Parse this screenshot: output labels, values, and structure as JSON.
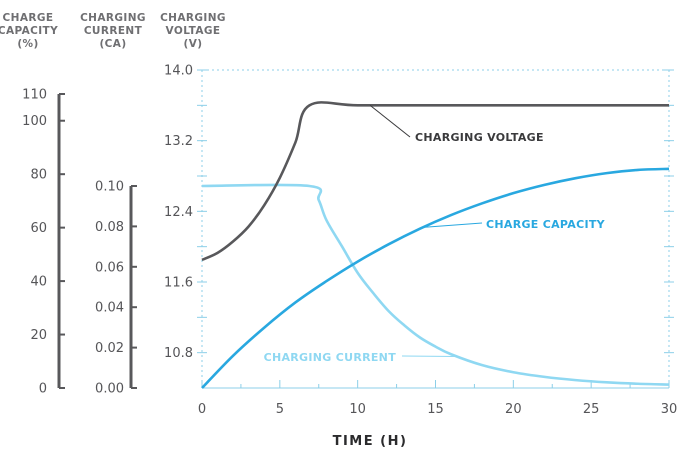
{
  "chart_data": {
    "type": "line",
    "xlabel": "TIME (H)",
    "x_ticks": [
      "0",
      "5",
      "10",
      "15",
      "20",
      "25",
      "30"
    ],
    "xlim": [
      0,
      30
    ],
    "axes": {
      "capacity": {
        "label_lines": [
          "CHARGE",
          "CAPACITY",
          "(%)"
        ],
        "ticks": [
          "0",
          "20",
          "40",
          "60",
          "80",
          "100",
          "110"
        ],
        "ylim": [
          0,
          110
        ]
      },
      "current": {
        "label_lines": [
          "CHARGING",
          "CURRENT",
          "(CA)"
        ],
        "ticks": [
          "0.00",
          "0.02",
          "0.04",
          "0.06",
          "0.08",
          "0.10"
        ],
        "ylim": [
          0,
          0.1
        ]
      },
      "voltage": {
        "label_lines": [
          "CHARGING",
          "VOLTAGE",
          "(V)"
        ],
        "ticks": [
          "10.8",
          "11.6",
          "12.4",
          "13.2",
          "14.0"
        ],
        "ylim": [
          10.4,
          14.0
        ]
      }
    },
    "grid": true,
    "series": [
      {
        "name": "CHARGING VOLTAGE",
        "axis": "voltage",
        "color": "#58585b",
        "x": [
          0,
          1,
          2,
          3,
          4,
          5,
          6,
          6.9,
          10,
          15,
          20,
          25,
          30
        ],
        "y": [
          11.85,
          11.93,
          12.06,
          12.23,
          12.47,
          12.78,
          13.18,
          13.6,
          13.6,
          13.6,
          13.6,
          13.6,
          13.6
        ]
      },
      {
        "name": "CHARGE CAPACITY",
        "axis": "capacity",
        "color": "#29a8e0",
        "x": [
          0,
          2,
          4,
          6,
          8,
          10,
          12,
          14,
          16,
          18,
          20,
          22,
          24,
          26,
          28,
          30
        ],
        "y": [
          0,
          12.1,
          22.6,
          32,
          40,
          47.3,
          53.8,
          59.6,
          64.7,
          69.1,
          72.9,
          76,
          78.5,
          80.4,
          81.6,
          82
        ]
      },
      {
        "name": "CHARGING CURRENT",
        "axis": "current",
        "color": "#8fd8f2",
        "x": [
          0,
          6.9,
          7.5,
          8,
          9,
          10,
          11,
          12,
          13,
          14,
          15,
          16,
          18,
          20,
          22,
          24,
          26,
          28,
          30
        ],
        "y": [
          0.1,
          0.1,
          0.093,
          0.083,
          0.07,
          0.057,
          0.047,
          0.038,
          0.031,
          0.025,
          0.0205,
          0.0167,
          0.0113,
          0.0078,
          0.0055,
          0.0039,
          0.0028,
          0.0021,
          0.0017
        ]
      }
    ],
    "annotations": [
      {
        "text": "CHARGING VOLTAGE",
        "series": 0,
        "x": 10.8,
        "color": "#3a3a3c"
      },
      {
        "text": "CHARGE CAPACITY",
        "series": 1,
        "x": 14.2,
        "color": "#29a8e0"
      },
      {
        "text": "CHARGING CURRENT",
        "series": 2,
        "x": 16.4,
        "color": "#8fd8f2"
      }
    ]
  }
}
